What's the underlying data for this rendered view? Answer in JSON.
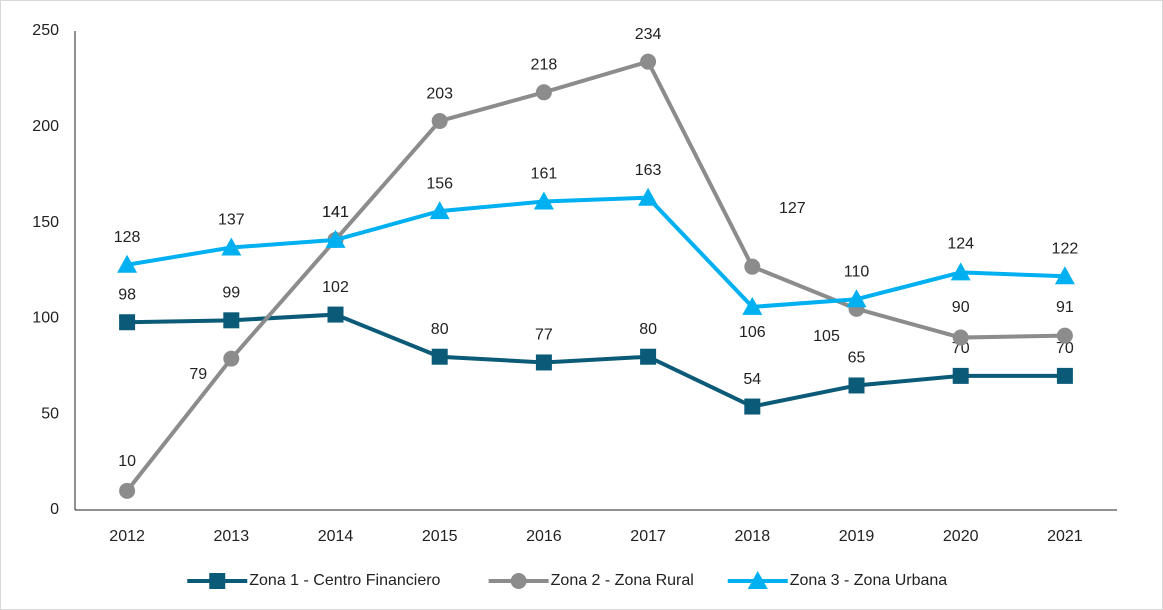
{
  "chart_data": {
    "type": "line",
    "categories": [
      "2012",
      "2013",
      "2014",
      "2015",
      "2016",
      "2017",
      "2018",
      "2019",
      "2020",
      "2021"
    ],
    "series": [
      {
        "name": "Zona 1 - Centro Financiero",
        "color": "#0b5a78",
        "marker": "square",
        "values": [
          98,
          99,
          102,
          80,
          77,
          80,
          54,
          65,
          70,
          70
        ]
      },
      {
        "name": "Zona 2 - Zona Rural",
        "color": "#8c8c8c",
        "marker": "circle",
        "values": [
          10,
          79,
          141,
          203,
          218,
          234,
          127,
          105,
          90,
          91
        ]
      },
      {
        "name": "Zona 3 - Zona Urbana",
        "color": "#00b0f0",
        "marker": "triangle",
        "values": [
          128,
          137,
          141,
          156,
          161,
          163,
          106,
          110,
          124,
          122
        ]
      }
    ],
    "ylim": [
      0,
      250
    ],
    "yticks": [
      0,
      50,
      100,
      150,
      200,
      250
    ],
    "grid": false,
    "legend": "bottom"
  }
}
